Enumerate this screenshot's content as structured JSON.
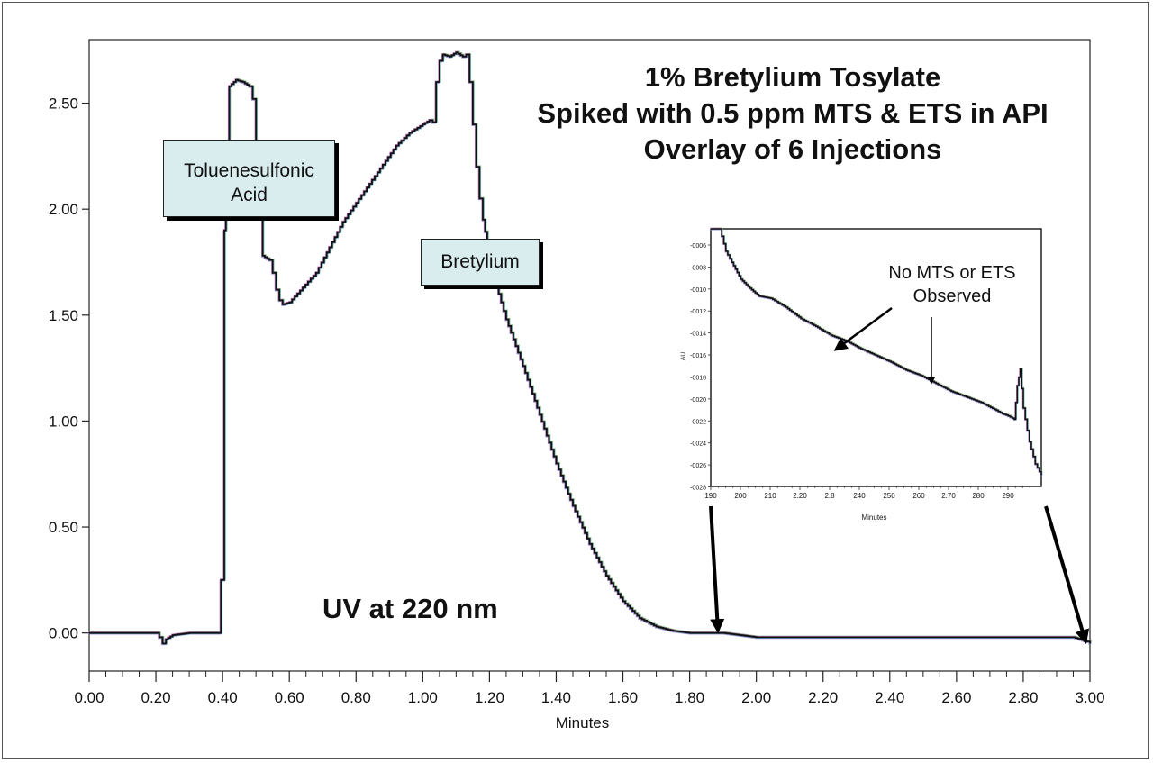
{
  "title_lines": [
    "1% Bretylium Tosylate",
    "Spiked with 0.5 ppm MTS & ETS in API",
    "Overlay of 6 Injections"
  ],
  "annotations": {
    "uv": "UV at 220 nm",
    "toluenesulfonic": [
      "Toluenesulfonic",
      "Acid"
    ],
    "bretylium": "Bretylium",
    "inset_note": [
      "No MTS or ETS",
      "Observed"
    ]
  },
  "colors": {
    "trace": "#111111",
    "callout_fill": "#d9ecee",
    "overlay_tints": [
      "#6fbf6f",
      "#9b7fd0",
      "#5aa0c8",
      "#d070c0"
    ]
  },
  "chart_data": [
    {
      "type": "line",
      "title": "1% Bretylium Tosylate Spiked with 0.5 ppm MTS & ETS in API Overlay of 6 Injections",
      "xlabel": "Minutes",
      "ylabel": "",
      "xlim": [
        0.0,
        3.0
      ],
      "ylim": [
        -0.18,
        2.8
      ],
      "x_ticks": [
        "0.00",
        "0.20",
        "0.40",
        "0.60",
        "0.80",
        "1.00",
        "1.20",
        "1.40",
        "1.60",
        "1.80",
        "2.00",
        "2.20",
        "2.40",
        "2.60",
        "2.80",
        "3.00"
      ],
      "y_ticks": [
        "0.00",
        "0.50",
        "1.00",
        "1.50",
        "2.00",
        "2.50"
      ],
      "series": [
        {
          "x": [
            0.0,
            0.2,
            0.21,
            0.22,
            0.23,
            0.25,
            0.3,
            0.39,
            0.395,
            0.405,
            0.41,
            0.42,
            0.44,
            0.46,
            0.48,
            0.49,
            0.5,
            0.51,
            0.52,
            0.54,
            0.55,
            0.56,
            0.57,
            0.58,
            0.6,
            0.64,
            0.68,
            0.72,
            0.76,
            0.8,
            0.84,
            0.88,
            0.92,
            0.96,
            1.0,
            1.02,
            1.03,
            1.04,
            1.05,
            1.06,
            1.08,
            1.1,
            1.12,
            1.13,
            1.14,
            1.15,
            1.16,
            1.17,
            1.18,
            1.2,
            1.22,
            1.25,
            1.3,
            1.35,
            1.4,
            1.45,
            1.5,
            1.55,
            1.6,
            1.65,
            1.7,
            1.75,
            1.8,
            1.85,
            1.9,
            1.95,
            2.0,
            2.5,
            2.95,
            2.97,
            2.99,
            3.0
          ],
          "y": [
            0.0,
            0.0,
            -0.02,
            -0.05,
            -0.03,
            -0.01,
            0.0,
            0.0,
            0.25,
            1.9,
            2.04,
            2.58,
            2.61,
            2.6,
            2.58,
            2.52,
            2.17,
            2.05,
            1.78,
            1.76,
            1.7,
            1.62,
            1.57,
            1.55,
            1.56,
            1.63,
            1.7,
            1.82,
            1.94,
            2.03,
            2.12,
            2.21,
            2.3,
            2.36,
            2.4,
            2.42,
            2.41,
            2.6,
            2.7,
            2.73,
            2.72,
            2.74,
            2.72,
            2.73,
            2.6,
            2.4,
            2.2,
            2.05,
            1.95,
            1.78,
            1.64,
            1.48,
            1.26,
            1.03,
            0.8,
            0.6,
            0.42,
            0.27,
            0.15,
            0.07,
            0.03,
            0.01,
            0.0,
            0.0,
            0.0,
            -0.01,
            -0.02,
            -0.02,
            -0.02,
            -0.03,
            -0.04,
            -0.05
          ]
        }
      ]
    },
    {
      "type": "line",
      "title": "",
      "xlabel": "Minutes",
      "ylabel": "AU",
      "x_tick_labels": [
        "190",
        "200",
        "210",
        "2.20",
        "2.8",
        "240",
        "250",
        "260",
        "2.70",
        "280",
        "290"
      ],
      "y_tick_labels": [
        "-0006",
        "-0008",
        "-0010",
        "-0012",
        "-0014",
        "-0016",
        "-0018",
        "-0020",
        "-0022",
        "-0024",
        "-0026",
        "-0028"
      ],
      "xlim": [
        1.9,
        3.0
      ],
      "ylim": [
        -0.0028,
        -0.0005
      ],
      "series": [
        {
          "x": [
            1.9,
            1.93,
            1.95,
            1.97,
            2.0,
            2.03,
            2.06,
            2.1,
            2.15,
            2.2,
            2.25,
            2.3,
            2.35,
            2.4,
            2.45,
            2.5,
            2.55,
            2.6,
            2.65,
            2.7,
            2.75,
            2.8,
            2.85,
            2.87,
            2.89,
            2.91,
            2.92,
            2.93,
            2.94,
            2.96,
            2.98,
            3.0
          ],
          "y": [
            -0.0005,
            -0.0005,
            -0.0007,
            -0.0008,
            -0.00095,
            -0.00103,
            -0.0011,
            -0.00112,
            -0.0012,
            -0.0013,
            -0.00137,
            -0.00145,
            -0.0015,
            -0.00157,
            -0.00163,
            -0.00169,
            -0.00176,
            -0.00181,
            -0.00188,
            -0.00195,
            -0.002,
            -0.00205,
            -0.00212,
            -0.00215,
            -0.00217,
            -0.0022,
            -0.0019,
            -0.00175,
            -0.0021,
            -0.0024,
            -0.0026,
            -0.0027
          ]
        }
      ]
    }
  ]
}
